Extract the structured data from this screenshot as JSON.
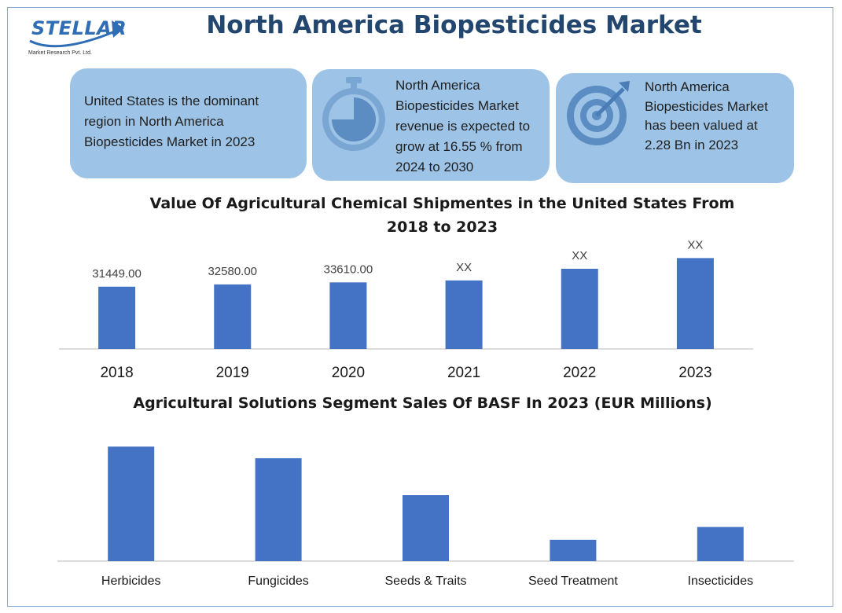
{
  "header": {
    "logo_word": "STELLAR",
    "logo_sub": "Market Research Pvt. Ltd.",
    "title": "North America Biopesticides Market"
  },
  "cards": [
    {
      "text": "United States is the dominant region in North America Biopesticides Market in 2023",
      "icon": "none"
    },
    {
      "text": "North America Biopesticides Market revenue is expected to grow at 16.55 % from 2024 to 2030",
      "icon": "stopwatch-icon"
    },
    {
      "text": "North America Biopesticides Market has been valued at 2.28 Bn in 2023",
      "icon": "target-icon"
    }
  ],
  "colors": {
    "bar": "#4472c4",
    "card": "#9dc3e6",
    "title": "#22466e"
  },
  "chart_data": [
    {
      "type": "bar",
      "title": "Value Of Agricultural Chemical Shipmentes in the United States From 2018 to 2023",
      "categories": [
        "2018",
        "2019",
        "2020",
        "2021",
        "2022",
        "2023"
      ],
      "values": [
        31449.0,
        32580.0,
        33610.0,
        34600,
        40500,
        45900
      ],
      "data_labels": [
        "31449.00",
        "32580.00",
        "33610.00",
        "XX",
        "XX",
        "XX"
      ],
      "xlabel": "",
      "ylabel": "",
      "ylim": [
        0,
        52000
      ],
      "grid": false
    },
    {
      "type": "bar",
      "title": "Agricultural Solutions Segment Sales Of BASF In 2023 (EUR Millions)",
      "categories": [
        "Herbicides",
        "Fungicides",
        "Seeds & Traits",
        "Seed Treatment",
        "Insecticides"
      ],
      "values": [
        2950,
        2650,
        1700,
        550,
        880
      ],
      "xlabel": "",
      "ylabel": "",
      "ylim": [
        0,
        3300
      ],
      "grid": false
    }
  ]
}
